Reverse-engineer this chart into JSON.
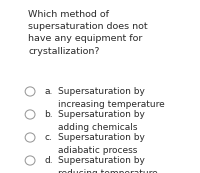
{
  "bg_color": "#c8d8e4",
  "card_color": "#e4edf3",
  "question": "Which method of\nsupersaturation does not\nhave any equipment for\ncrystallization?",
  "options": [
    [
      "a.",
      "Supersaturation by\nincreasing temperature"
    ],
    [
      "b.",
      "Supersaturation by\nadding chemicals"
    ],
    [
      "c.",
      "Supersaturation by\nadiabatic process"
    ],
    [
      "d.",
      "Supersaturation by\nreducing temperature"
    ]
  ],
  "text_color": "#2a2a2a",
  "question_fontsize": 6.8,
  "option_fontsize": 6.5,
  "circle_color": "#999999",
  "outer_bg": "#ffffff"
}
